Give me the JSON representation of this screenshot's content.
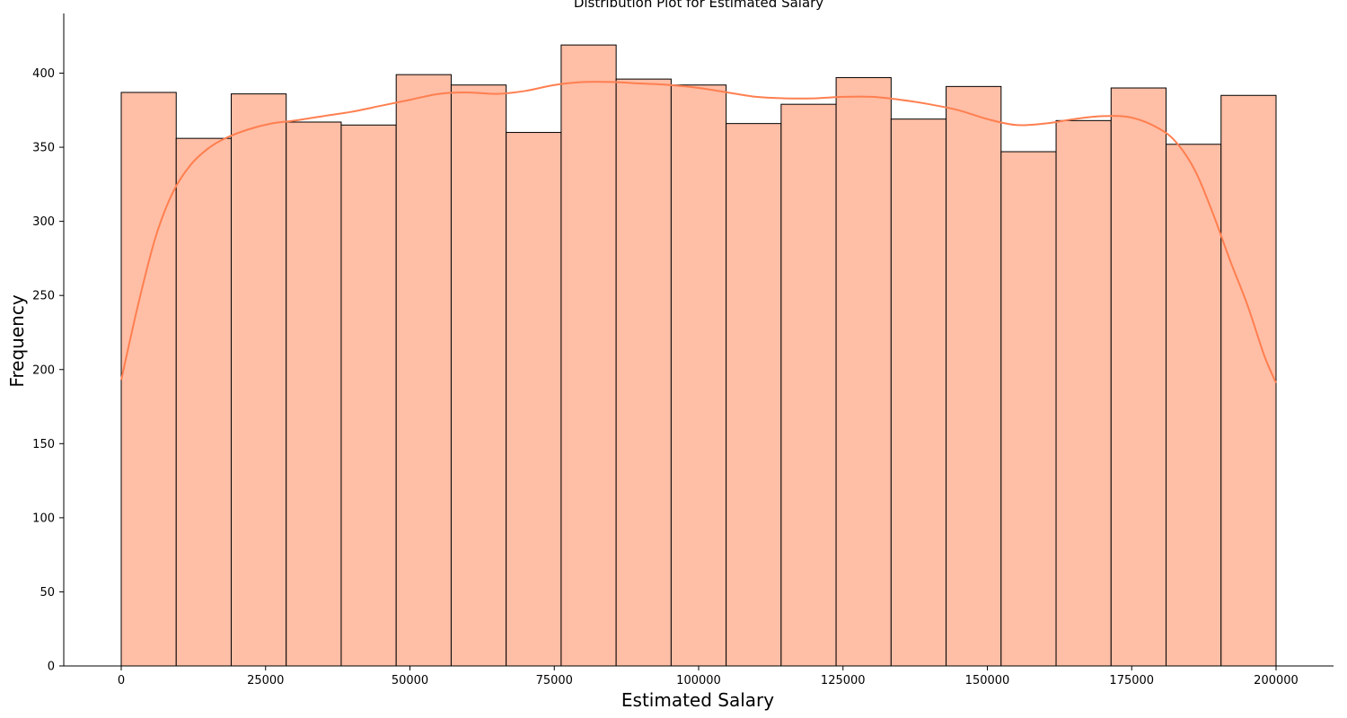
{
  "chart_data": {
    "type": "bar",
    "title": "Distribution Plot for Estimated Salary",
    "xlabel": "Estimated Salary",
    "ylabel": "Frequency",
    "xlim": [
      -10000,
      210000
    ],
    "ylim": [
      0,
      440
    ],
    "x_ticks": [
      0,
      25000,
      50000,
      75000,
      100000,
      125000,
      150000,
      175000,
      200000
    ],
    "y_ticks": [
      0,
      50,
      100,
      150,
      200,
      250,
      300,
      350,
      400
    ],
    "bin_start": 0,
    "bin_end": 200000,
    "counts": [
      387,
      356,
      386,
      367,
      365,
      399,
      392,
      360,
      419,
      396,
      392,
      366,
      379,
      397,
      369,
      391,
      347,
      368,
      390,
      352,
      385
    ],
    "bar_color": "#FFBEA6",
    "edge_color": "#000000",
    "kde_color": "#FF7F50",
    "kde_x": [
      0,
      3000,
      6000,
      9000,
      12000,
      15000,
      18000,
      22000,
      26000,
      30000,
      35000,
      40000,
      45000,
      50000,
      55000,
      60000,
      65000,
      70000,
      75000,
      80000,
      85000,
      90000,
      95000,
      100000,
      105000,
      110000,
      115000,
      120000,
      125000,
      130000,
      135000,
      140000,
      145000,
      150000,
      155000,
      160000,
      165000,
      170000,
      175000,
      180000,
      183000,
      186000,
      189000,
      192000,
      195000,
      198000,
      200000
    ],
    "kde_y": [
      193,
      245,
      290,
      320,
      338,
      349,
      356,
      362,
      366,
      368,
      371,
      374,
      378,
      382,
      386,
      387,
      386,
      388,
      392,
      394,
      394,
      393,
      392,
      390,
      387,
      384,
      383,
      383,
      384,
      384,
      382,
      379,
      375,
      369,
      365,
      366,
      369,
      371,
      370,
      362,
      352,
      334,
      306,
      274,
      244,
      209,
      191
    ]
  }
}
